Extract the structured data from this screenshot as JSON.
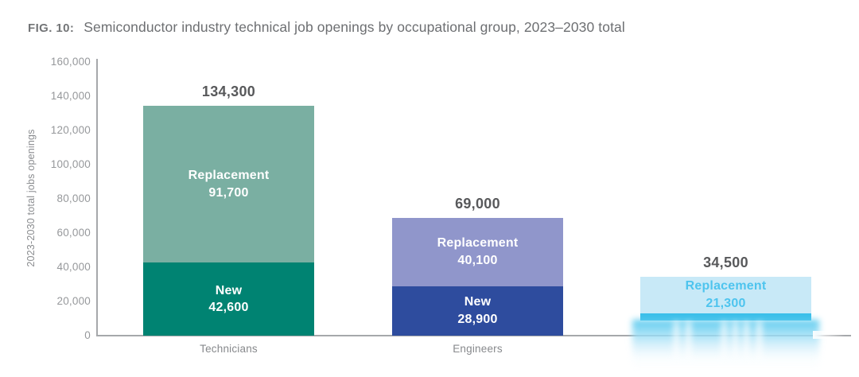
{
  "figure": {
    "label": "FIG. 10:",
    "title": "Semiconductor industry technical job openings by occupational group, 2023–2030 total"
  },
  "chart_data": {
    "type": "bar",
    "stacked": true,
    "title": "Semiconductor industry technical job openings by occupational group, 2023–2030 total",
    "xlabel": "",
    "ylabel": "2023-2030 total jobs openings",
    "ylim": [
      0,
      160000
    ],
    "grid": false,
    "legend_position": "none (series labeled inside segments)",
    "yticks": [
      {
        "value": 0,
        "label": "0"
      },
      {
        "value": 20000,
        "label": "20,000"
      },
      {
        "value": 40000,
        "label": "40,000"
      },
      {
        "value": 60000,
        "label": "60,000"
      },
      {
        "value": 80000,
        "label": "80,000"
      },
      {
        "value": 100000,
        "label": "100,000"
      },
      {
        "value": 120000,
        "label": "120,000"
      },
      {
        "value": 140000,
        "label": "140,000"
      },
      {
        "value": 160000,
        "label": "160,000"
      }
    ],
    "bars": [
      {
        "category": "Technicians",
        "category_label_visible": true,
        "total": 134300,
        "total_label": "134,300",
        "segments": [
          {
            "name": "New",
            "value": 42600,
            "value_label": "42,600",
            "color": "#008372",
            "text_color": "#ffffff",
            "label_visible": true,
            "faded": false
          },
          {
            "name": "Replacement",
            "value": 91700,
            "value_label": "91,700",
            "color": "#7aafa2",
            "text_color": "#ffffff",
            "label_visible": true,
            "faded": false
          }
        ]
      },
      {
        "category": "Engineers",
        "category_label_visible": true,
        "total": 69000,
        "total_label": "69,000",
        "segments": [
          {
            "name": "New",
            "value": 28900,
            "value_label": "28,900",
            "color": "#2e4c9e",
            "text_color": "#ffffff",
            "label_visible": true,
            "faded": false
          },
          {
            "name": "Replacement",
            "value": 40100,
            "value_label": "40,100",
            "color": "#9096cb",
            "text_color": "#ffffff",
            "label_visible": true,
            "faded": false
          }
        ]
      },
      {
        "category": "",
        "category_label_visible": false,
        "total": 34500,
        "total_label": "34,500",
        "segments": [
          {
            "name": "New",
            "value": 13200,
            "value_label": "",
            "color": "#3bbfea",
            "text_color": "#4ec4ee",
            "label_visible": false,
            "faded": true
          },
          {
            "name": "Replacement",
            "value": 21300,
            "value_label": "21,300",
            "color": "#c8e9f7",
            "text_color": "#4ec4ee",
            "label_visible": true,
            "faded": false
          }
        ]
      }
    ]
  },
  "colors": {
    "total_label_text": "#58595b",
    "axis_line": "#a6a8ab",
    "tick_label_text": "#96989b",
    "category_label_text": "#87898c",
    "title_text": "#6d6f72"
  }
}
